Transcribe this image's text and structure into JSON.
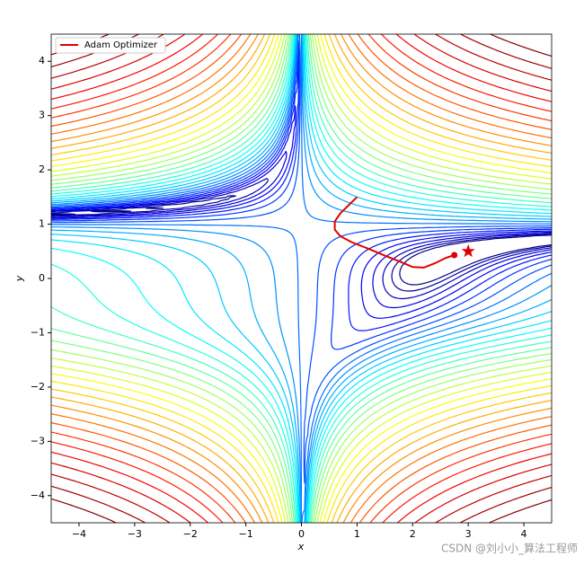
{
  "chart_data": {
    "type": "line",
    "xlabel": "x",
    "ylabel": "y",
    "xlim": [
      -4.5,
      4.5
    ],
    "ylim": [
      -4.5,
      4.5
    ],
    "xticks": [
      {
        "value": -4,
        "label": "−4"
      },
      {
        "value": -3,
        "label": "−3"
      },
      {
        "value": -2,
        "label": "−2"
      },
      {
        "value": -1,
        "label": "−1"
      },
      0,
      1,
      2,
      3,
      4
    ],
    "yticks": [
      {
        "value": -4,
        "label": "−4"
      },
      {
        "value": -3,
        "label": "−3"
      },
      {
        "value": -2,
        "label": "−2"
      },
      {
        "value": -1,
        "label": "−1"
      },
      0,
      1,
      2,
      3,
      4
    ],
    "series": [
      {
        "name": "Adam Optimizer",
        "color": "#e00000",
        "x": [
          1.0,
          0.85,
          0.7,
          0.6,
          0.6,
          0.7,
          0.9,
          1.2,
          1.5,
          1.8,
          2.0,
          2.2,
          2.4,
          2.6,
          2.75
        ],
        "values": [
          1.5,
          1.35,
          1.2,
          1.05,
          0.9,
          0.78,
          0.67,
          0.55,
          0.42,
          0.3,
          0.21,
          0.2,
          0.28,
          0.38,
          0.43
        ]
      }
    ],
    "star": {
      "x": 3,
      "y": 0.5,
      "color": "#e00000"
    },
    "legend": "upper left",
    "watermark": "CSDN @刘小小_算法工程师"
  }
}
